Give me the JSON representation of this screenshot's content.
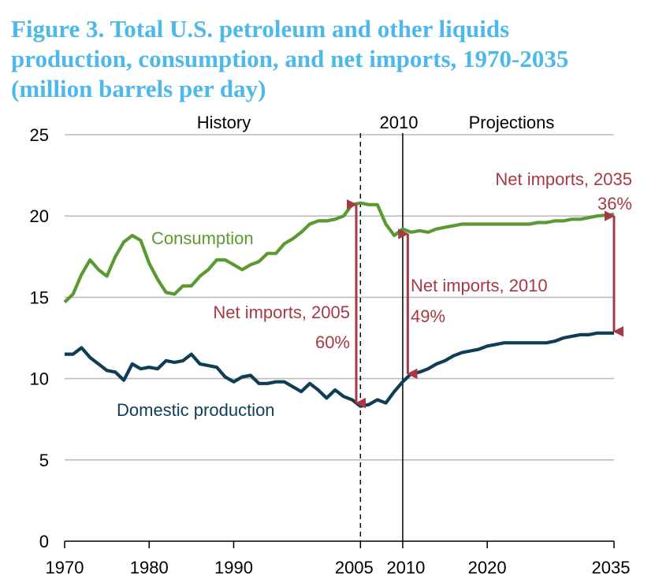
{
  "title_lines": [
    "Figure 3. Total U.S. petroleum and other liquids",
    "production, consumption, and net imports, 1970-2035",
    "(million barrels per day)"
  ],
  "colors": {
    "title": "#4db8ea",
    "consumption": "#5b9a32",
    "production": "#0f3d57",
    "annotation": "#a73945",
    "grid": "#bdbdbd",
    "axis": "#000000"
  },
  "chart_data": {
    "type": "line",
    "title": "Figure 3. Total U.S. petroleum and other liquids production, consumption, and net imports, 1970-2035 (million barrels per day)",
    "xlabel": "",
    "ylabel": "",
    "xlim": [
      1970,
      2035
    ],
    "ylim": [
      0,
      25
    ],
    "grid": true,
    "x_ticks": [
      1970,
      1980,
      1990,
      2005,
      2010,
      2020,
      2035
    ],
    "x_tick_labels": [
      "1970",
      "1980",
      "1990",
      "2005",
      "2010",
      "2020",
      "2035"
    ],
    "y_ticks": [
      0,
      5,
      10,
      15,
      20,
      25
    ],
    "y_tick_labels": [
      "0",
      "5",
      "10",
      "15",
      "20",
      "25"
    ],
    "period_labels": {
      "history": "History",
      "divider_year_label": "2010",
      "projections": "Projections"
    },
    "reference_lines": [
      {
        "x": 2005,
        "style": "dashed"
      },
      {
        "x": 2010,
        "style": "solid"
      }
    ],
    "x": [
      1970,
      1971,
      1972,
      1973,
      1974,
      1975,
      1976,
      1977,
      1978,
      1979,
      1980,
      1981,
      1982,
      1983,
      1984,
      1985,
      1986,
      1987,
      1988,
      1989,
      1990,
      1991,
      1992,
      1993,
      1994,
      1995,
      1996,
      1997,
      1998,
      1999,
      2000,
      2001,
      2002,
      2003,
      2004,
      2005,
      2006,
      2007,
      2008,
      2009,
      2010,
      2011,
      2012,
      2013,
      2014,
      2015,
      2016,
      2017,
      2018,
      2019,
      2020,
      2021,
      2022,
      2023,
      2024,
      2025,
      2026,
      2027,
      2028,
      2029,
      2030,
      2031,
      2032,
      2033,
      2034,
      2035
    ],
    "series": [
      {
        "name": "Consumption",
        "color": "#5b9a32",
        "values": [
          14.7,
          15.2,
          16.4,
          17.3,
          16.7,
          16.3,
          17.5,
          18.4,
          18.8,
          18.5,
          17.1,
          16.1,
          15.3,
          15.2,
          15.7,
          15.7,
          16.3,
          16.7,
          17.3,
          17.3,
          17.0,
          16.7,
          17.0,
          17.2,
          17.7,
          17.7,
          18.3,
          18.6,
          19.0,
          19.5,
          19.7,
          19.7,
          19.8,
          20.0,
          20.7,
          20.8,
          20.7,
          20.7,
          19.5,
          18.8,
          19.2,
          19.0,
          19.1,
          19.0,
          19.2,
          19.3,
          19.4,
          19.5,
          19.5,
          19.5,
          19.5,
          19.5,
          19.5,
          19.5,
          19.5,
          19.5,
          19.6,
          19.6,
          19.7,
          19.7,
          19.8,
          19.8,
          19.9,
          20.0,
          20.05,
          20.1
        ]
      },
      {
        "name": "Domestic production",
        "color": "#0f3d57",
        "values": [
          11.5,
          11.5,
          11.9,
          11.3,
          10.9,
          10.5,
          10.4,
          9.9,
          10.9,
          10.6,
          10.7,
          10.6,
          11.1,
          11.0,
          11.1,
          11.5,
          10.9,
          10.8,
          10.7,
          10.1,
          9.8,
          10.1,
          10.2,
          9.7,
          9.7,
          9.8,
          9.8,
          9.5,
          9.2,
          9.7,
          9.3,
          8.8,
          9.3,
          8.9,
          8.7,
          8.3,
          8.4,
          8.7,
          8.5,
          9.2,
          9.8,
          10.3,
          10.4,
          10.6,
          10.9,
          11.1,
          11.4,
          11.6,
          11.7,
          11.8,
          12.0,
          12.1,
          12.2,
          12.2,
          12.2,
          12.2,
          12.2,
          12.2,
          12.3,
          12.5,
          12.6,
          12.7,
          12.7,
          12.8,
          12.8,
          12.8
        ]
      }
    ],
    "annotations": [
      {
        "name": "net-imports-2005",
        "label": "Net imports, 2005",
        "value": "60%",
        "x": 2004.5,
        "from": 8.4,
        "to": 20.8
      },
      {
        "name": "net-imports-2010",
        "label": "Net imports, 2010",
        "value": "49%",
        "x": 2010.6,
        "from": 10.2,
        "to": 19.0
      },
      {
        "name": "net-imports-2035",
        "label": "Net imports, 2035",
        "value": "36%",
        "x": 2035,
        "from": 12.8,
        "to": 20.1
      }
    ]
  }
}
